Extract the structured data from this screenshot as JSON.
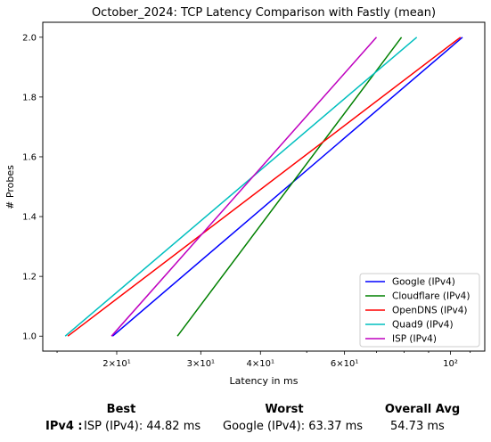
{
  "chart_data": {
    "type": "line",
    "title": "October_2024: TCP Latency Comparison with Fastly (mean)",
    "xlabel": "Latency in ms",
    "ylabel": "# Probes",
    "xscale": "log",
    "xlim": [
      14,
      118
    ],
    "ylim": [
      0.95,
      2.05
    ],
    "xticks": [
      {
        "value": 20,
        "label": "2×10¹"
      },
      {
        "value": 30,
        "label": "3×10¹"
      },
      {
        "value": 40,
        "label": "4×10¹"
      },
      {
        "value": 60,
        "label": "6×10¹"
      },
      {
        "value": 100,
        "label": "10²"
      }
    ],
    "yticks": [
      1.0,
      1.2,
      1.4,
      1.6,
      1.8,
      2.0
    ],
    "grid": false,
    "legend_position": "lower-right",
    "series": [
      {
        "name": "Google (IPv4)",
        "color": "#0000ff",
        "x": [
          19.6,
          106.0
        ],
        "y": [
          1.0,
          2.0
        ]
      },
      {
        "name": "Cloudflare (IPv4)",
        "color": "#008000",
        "x": [
          26.8,
          79.0
        ],
        "y": [
          1.0,
          2.0
        ]
      },
      {
        "name": "OpenDNS (IPv4)",
        "color": "#ff0000",
        "x": [
          15.8,
          105.0
        ],
        "y": [
          1.0,
          2.0
        ]
      },
      {
        "name": "Quad9 (IPv4)",
        "color": "#00bfbf",
        "x": [
          15.6,
          85.0
        ],
        "y": [
          1.0,
          2.0
        ]
      },
      {
        "name": "ISP (IPv4)",
        "color": "#bf00bf",
        "x": [
          19.5,
          70.0
        ],
        "y": [
          1.0,
          2.0
        ]
      }
    ]
  },
  "summary": {
    "headers": {
      "best": "Best",
      "worst": "Worst",
      "overall": "Overall Avg"
    },
    "row_label": "IPv4 :",
    "best": "ISP (IPv4): 44.82 ms",
    "worst": "Google (IPv4): 63.37 ms",
    "overall": "54.73 ms"
  }
}
